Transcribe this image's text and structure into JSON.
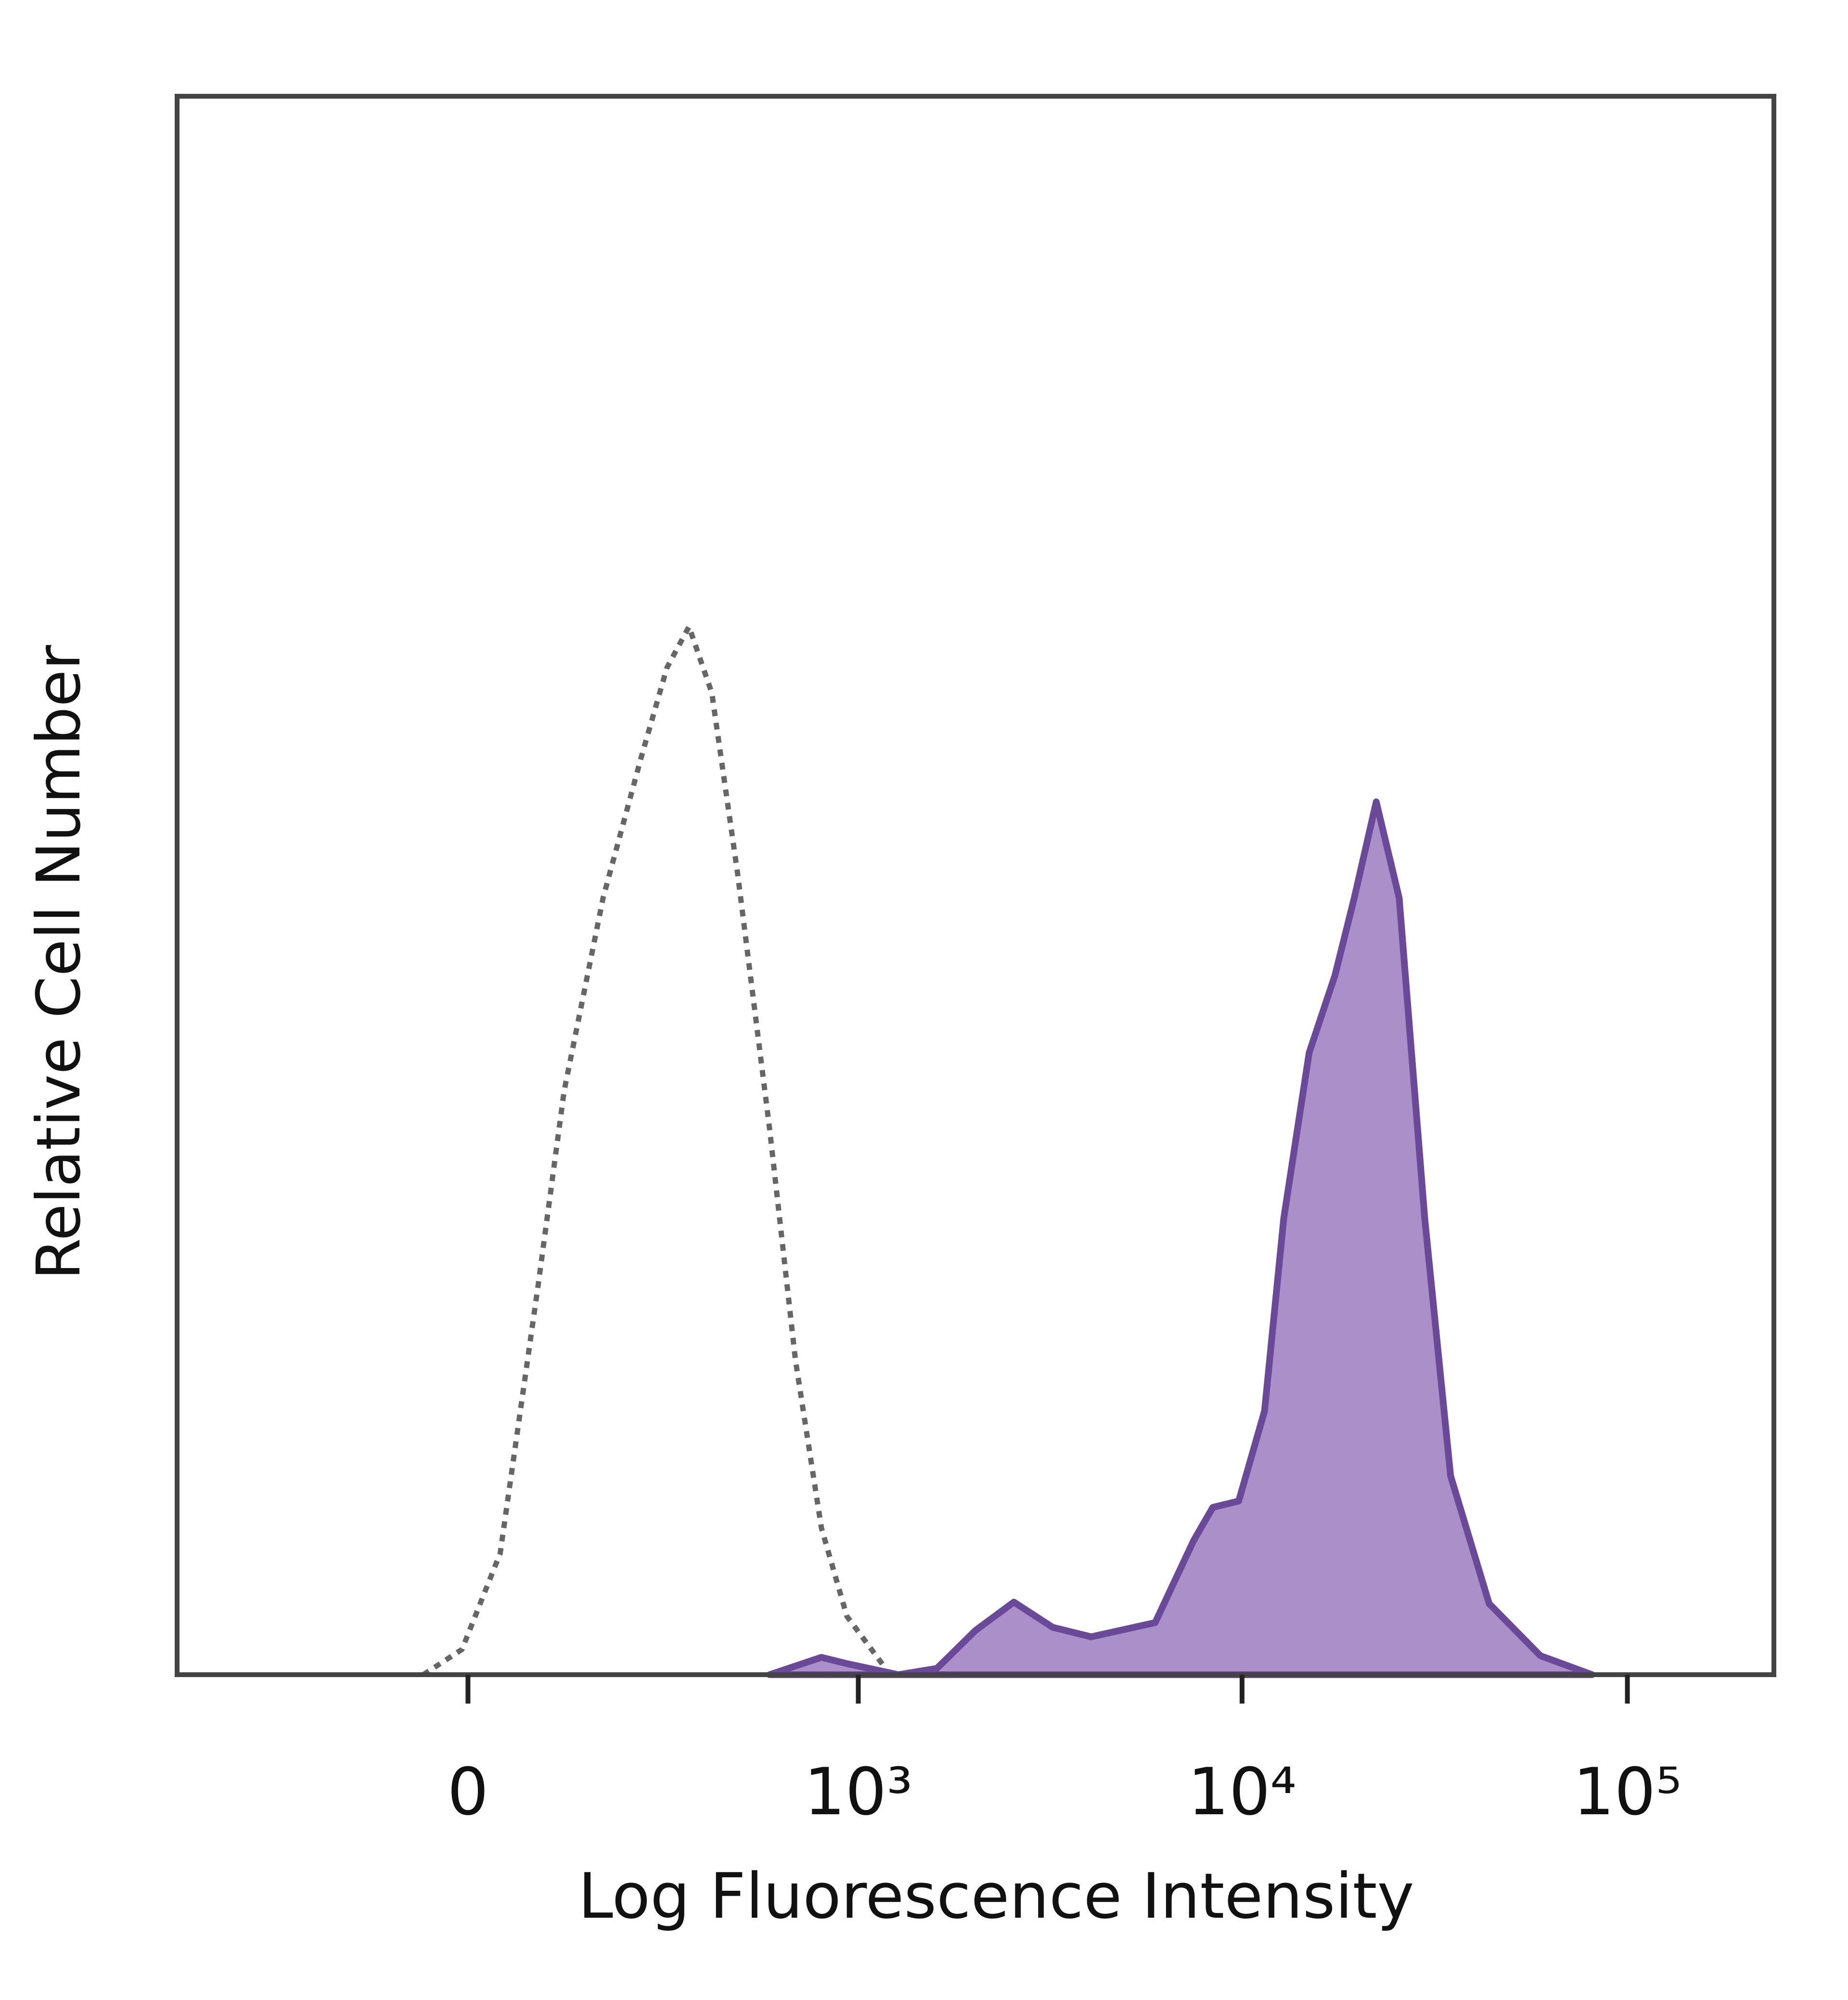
{
  "chart_data": {
    "type": "histogram-overlay",
    "x_label": "Log Fluorescence Intensity",
    "y_label": "Relative Cell Number",
    "xscale": "biexponential",
    "xlim": [
      -540,
      240000
    ],
    "ylim": [
      0,
      100
    ],
    "xticks": [
      0,
      {
        "value": 1000,
        "label": "10³"
      },
      {
        "value": 10000,
        "label": "10⁴"
      },
      {
        "value": 100000,
        "label": "10⁵"
      }
    ],
    "series": [
      {
        "color": "#666666",
        "style": "dashed",
        "fill": null,
        "x": [
          -53,
          -7,
          38,
          85,
          119,
          176,
          241,
          292,
          341,
          398,
          471,
          578,
          680,
          798,
          933,
          1180
        ],
        "values": [
          0,
          1.6,
          7.7,
          24.8,
          37,
          49.2,
          58.1,
          63.8,
          66.4,
          62.2,
          50.8,
          34.6,
          19.9,
          9.3,
          3.7,
          0.4
        ]
      },
      {
        "color": "#6a4a98",
        "style": "solid",
        "fill": "#ab8fc8",
        "x": [
          578,
          798,
          933,
          1274,
          1609,
          2028,
          2554,
          3223,
          4057,
          5949,
          7487,
          8399,
          9800,
          11437,
          12828,
          14935,
          17424,
          19551,
          22295,
          25578,
          29792,
          34770,
          43777,
          59457,
          80948
        ],
        "values": [
          0,
          1.1,
          0.7,
          0,
          0.4,
          2.8,
          4.6,
          3.0,
          2.4,
          3.3,
          8.5,
          10.6,
          11.0,
          16.7,
          28.9,
          39.4,
          44.3,
          49.2,
          55.3,
          49.2,
          28.9,
          12.6,
          4.5,
          1.2,
          0
        ]
      }
    ]
  }
}
